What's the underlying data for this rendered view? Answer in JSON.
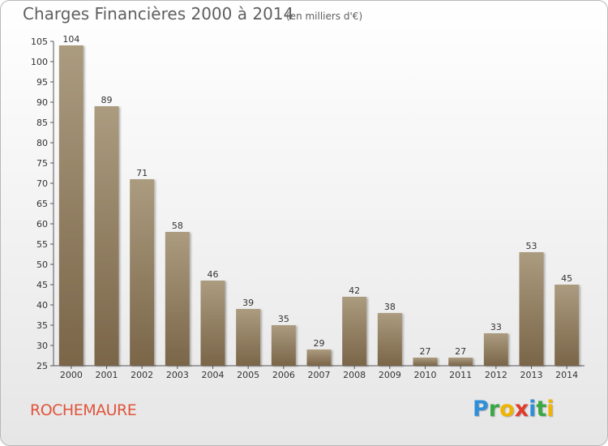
{
  "header": {
    "title": "Charges Financières 2000 à 2014",
    "subtitle": "(en milliers d'€)"
  },
  "footer": {
    "town": "ROCHEMAURE",
    "logo_letters": [
      {
        "char": "P",
        "color": "#2f8fd8"
      },
      {
        "char": "r",
        "color": "#39a845"
      },
      {
        "char": "o",
        "color": "#f0b400"
      },
      {
        "char": "x",
        "color": "#e03c2c"
      },
      {
        "char": "i",
        "color": "#2f8fd8"
      },
      {
        "char": "t",
        "color": "#39a845"
      },
      {
        "char": "i",
        "color": "#f0b400"
      }
    ]
  },
  "colors": {
    "bar_light": "#ab9b7f",
    "bar_dark": "#7a6548",
    "town": "#e0543c",
    "text": "#5f5f5f"
  },
  "chart_data": {
    "type": "bar",
    "title": "Charges Financières 2000 à 2014",
    "subtitle": "(en milliers d'€)",
    "categories": [
      "2000",
      "2001",
      "2002",
      "2003",
      "2004",
      "2005",
      "2006",
      "2007",
      "2008",
      "2009",
      "2010",
      "2011",
      "2012",
      "2013",
      "2014"
    ],
    "values": [
      104,
      89,
      71,
      58,
      46,
      39,
      35,
      29,
      42,
      38,
      27,
      27,
      33,
      53,
      45
    ],
    "ylim": [
      25,
      105
    ],
    "yticks": [
      25,
      30,
      35,
      40,
      45,
      50,
      55,
      60,
      65,
      70,
      75,
      80,
      85,
      90,
      95,
      100,
      105
    ],
    "grid": false,
    "legend": "none"
  }
}
